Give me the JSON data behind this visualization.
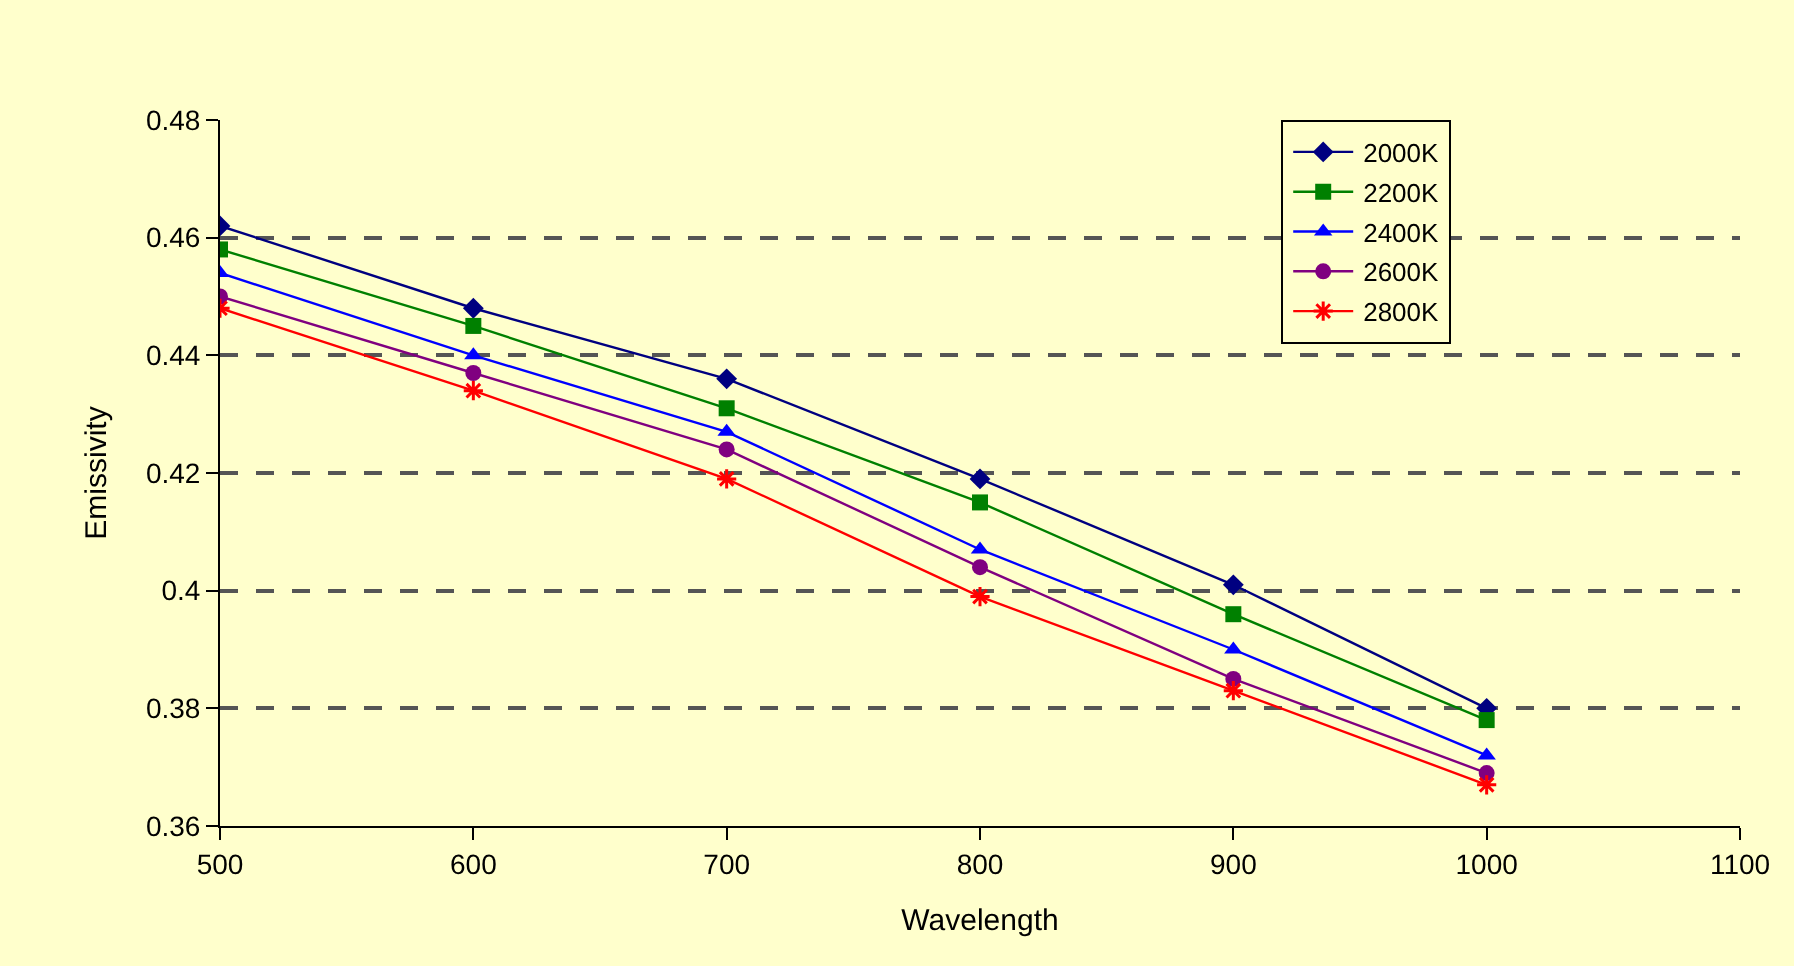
{
  "chart_data": {
    "type": "line",
    "xlabel": "Wavelength",
    "ylabel": "Emissivity",
    "x": [
      500,
      600,
      700,
      800,
      900,
      1000
    ],
    "xlim": [
      500,
      1100
    ],
    "xticks": [
      500,
      600,
      700,
      800,
      900,
      1000,
      1100
    ],
    "ylim": [
      0.36,
      0.48
    ],
    "yticks": [
      0.36,
      0.38,
      0.4,
      0.42,
      0.44,
      0.46,
      0.48
    ],
    "grid": "y",
    "legend": "top right",
    "line_style": "solid",
    "series": [
      {
        "name": "2000K",
        "color": "#000080",
        "marker": "diamond",
        "values": [
          0.462,
          0.448,
          0.436,
          0.419,
          0.401,
          0.38
        ]
      },
      {
        "name": "2200K",
        "color": "#008000",
        "marker": "square",
        "values": [
          0.458,
          0.445,
          0.431,
          0.415,
          0.396,
          0.378
        ]
      },
      {
        "name": "2400K",
        "color": "#0000ff",
        "marker": "triangle",
        "values": [
          0.454,
          0.44,
          0.427,
          0.407,
          0.39,
          0.372
        ]
      },
      {
        "name": "2600K",
        "color": "#800080",
        "marker": "circle",
        "values": [
          0.45,
          0.437,
          0.424,
          0.404,
          0.385,
          0.369
        ]
      },
      {
        "name": "2800K",
        "color": "#ff0000",
        "marker": "cross",
        "values": [
          0.448,
          0.434,
          0.419,
          0.399,
          0.383,
          0.367
        ]
      }
    ]
  }
}
